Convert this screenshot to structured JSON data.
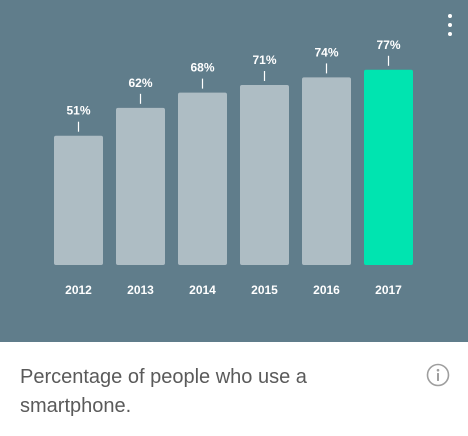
{
  "chart_data": {
    "type": "bar",
    "categories": [
      "2012",
      "2013",
      "2014",
      "2015",
      "2016",
      "2017"
    ],
    "values": [
      51,
      62,
      68,
      71,
      74,
      77
    ],
    "value_labels": [
      "51%",
      "62%",
      "68%",
      "71%",
      "74%",
      "77%"
    ],
    "highlight_index": 5,
    "ylim": [
      0,
      100
    ],
    "grid": false
  },
  "caption": "Percentage of people who use a smartphone.",
  "colors": {
    "panel_background": "#607d8b",
    "bar": "#aebdc4",
    "bar_highlight": "#00e4b0",
    "label": "#ffffff",
    "caption_text": "#5a5a5a",
    "info_icon": "#9e9e9e"
  },
  "icons": {
    "menu": "more-vert-icon",
    "info": "info-icon"
  }
}
